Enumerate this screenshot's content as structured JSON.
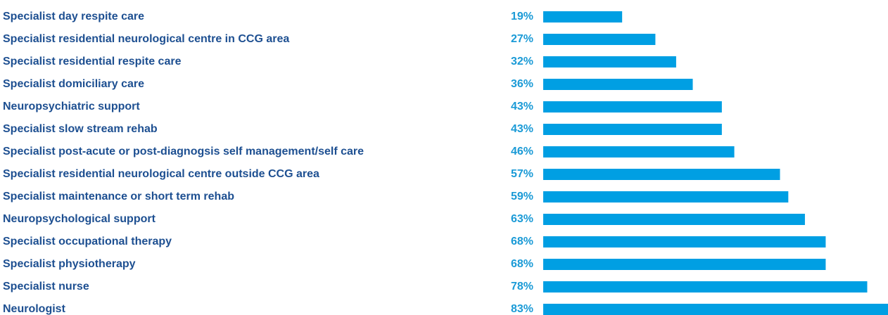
{
  "chart_data": {
    "type": "bar",
    "orientation": "horizontal",
    "color": "#009fe3",
    "categories": [
      "Specialist day respite care",
      "Specialist residential neurological centre in CCG area",
      "Specialist residential respite care",
      "Specialist domiciliary care",
      "Neuropsychiatric support",
      "Specialist slow stream rehab",
      "Specialist post-acute or post-diagnogsis self management/self care",
      "Specialist residential neurological centre outside CCG area",
      "Specialist maintenance or short term rehab",
      "Neuropsychological support",
      "Specialist occupational therapy",
      "Specialist physiotherapy",
      "Specialist nurse",
      "Neurologist"
    ],
    "values": [
      19,
      27,
      32,
      36,
      43,
      43,
      46,
      57,
      59,
      63,
      68,
      68,
      78,
      83
    ],
    "value_labels": [
      "19%",
      "27%",
      "32%",
      "36%",
      "43%",
      "43%",
      "46%",
      "57%",
      "59%",
      "63%",
      "68%",
      "68%",
      "78%",
      "83%"
    ]
  }
}
